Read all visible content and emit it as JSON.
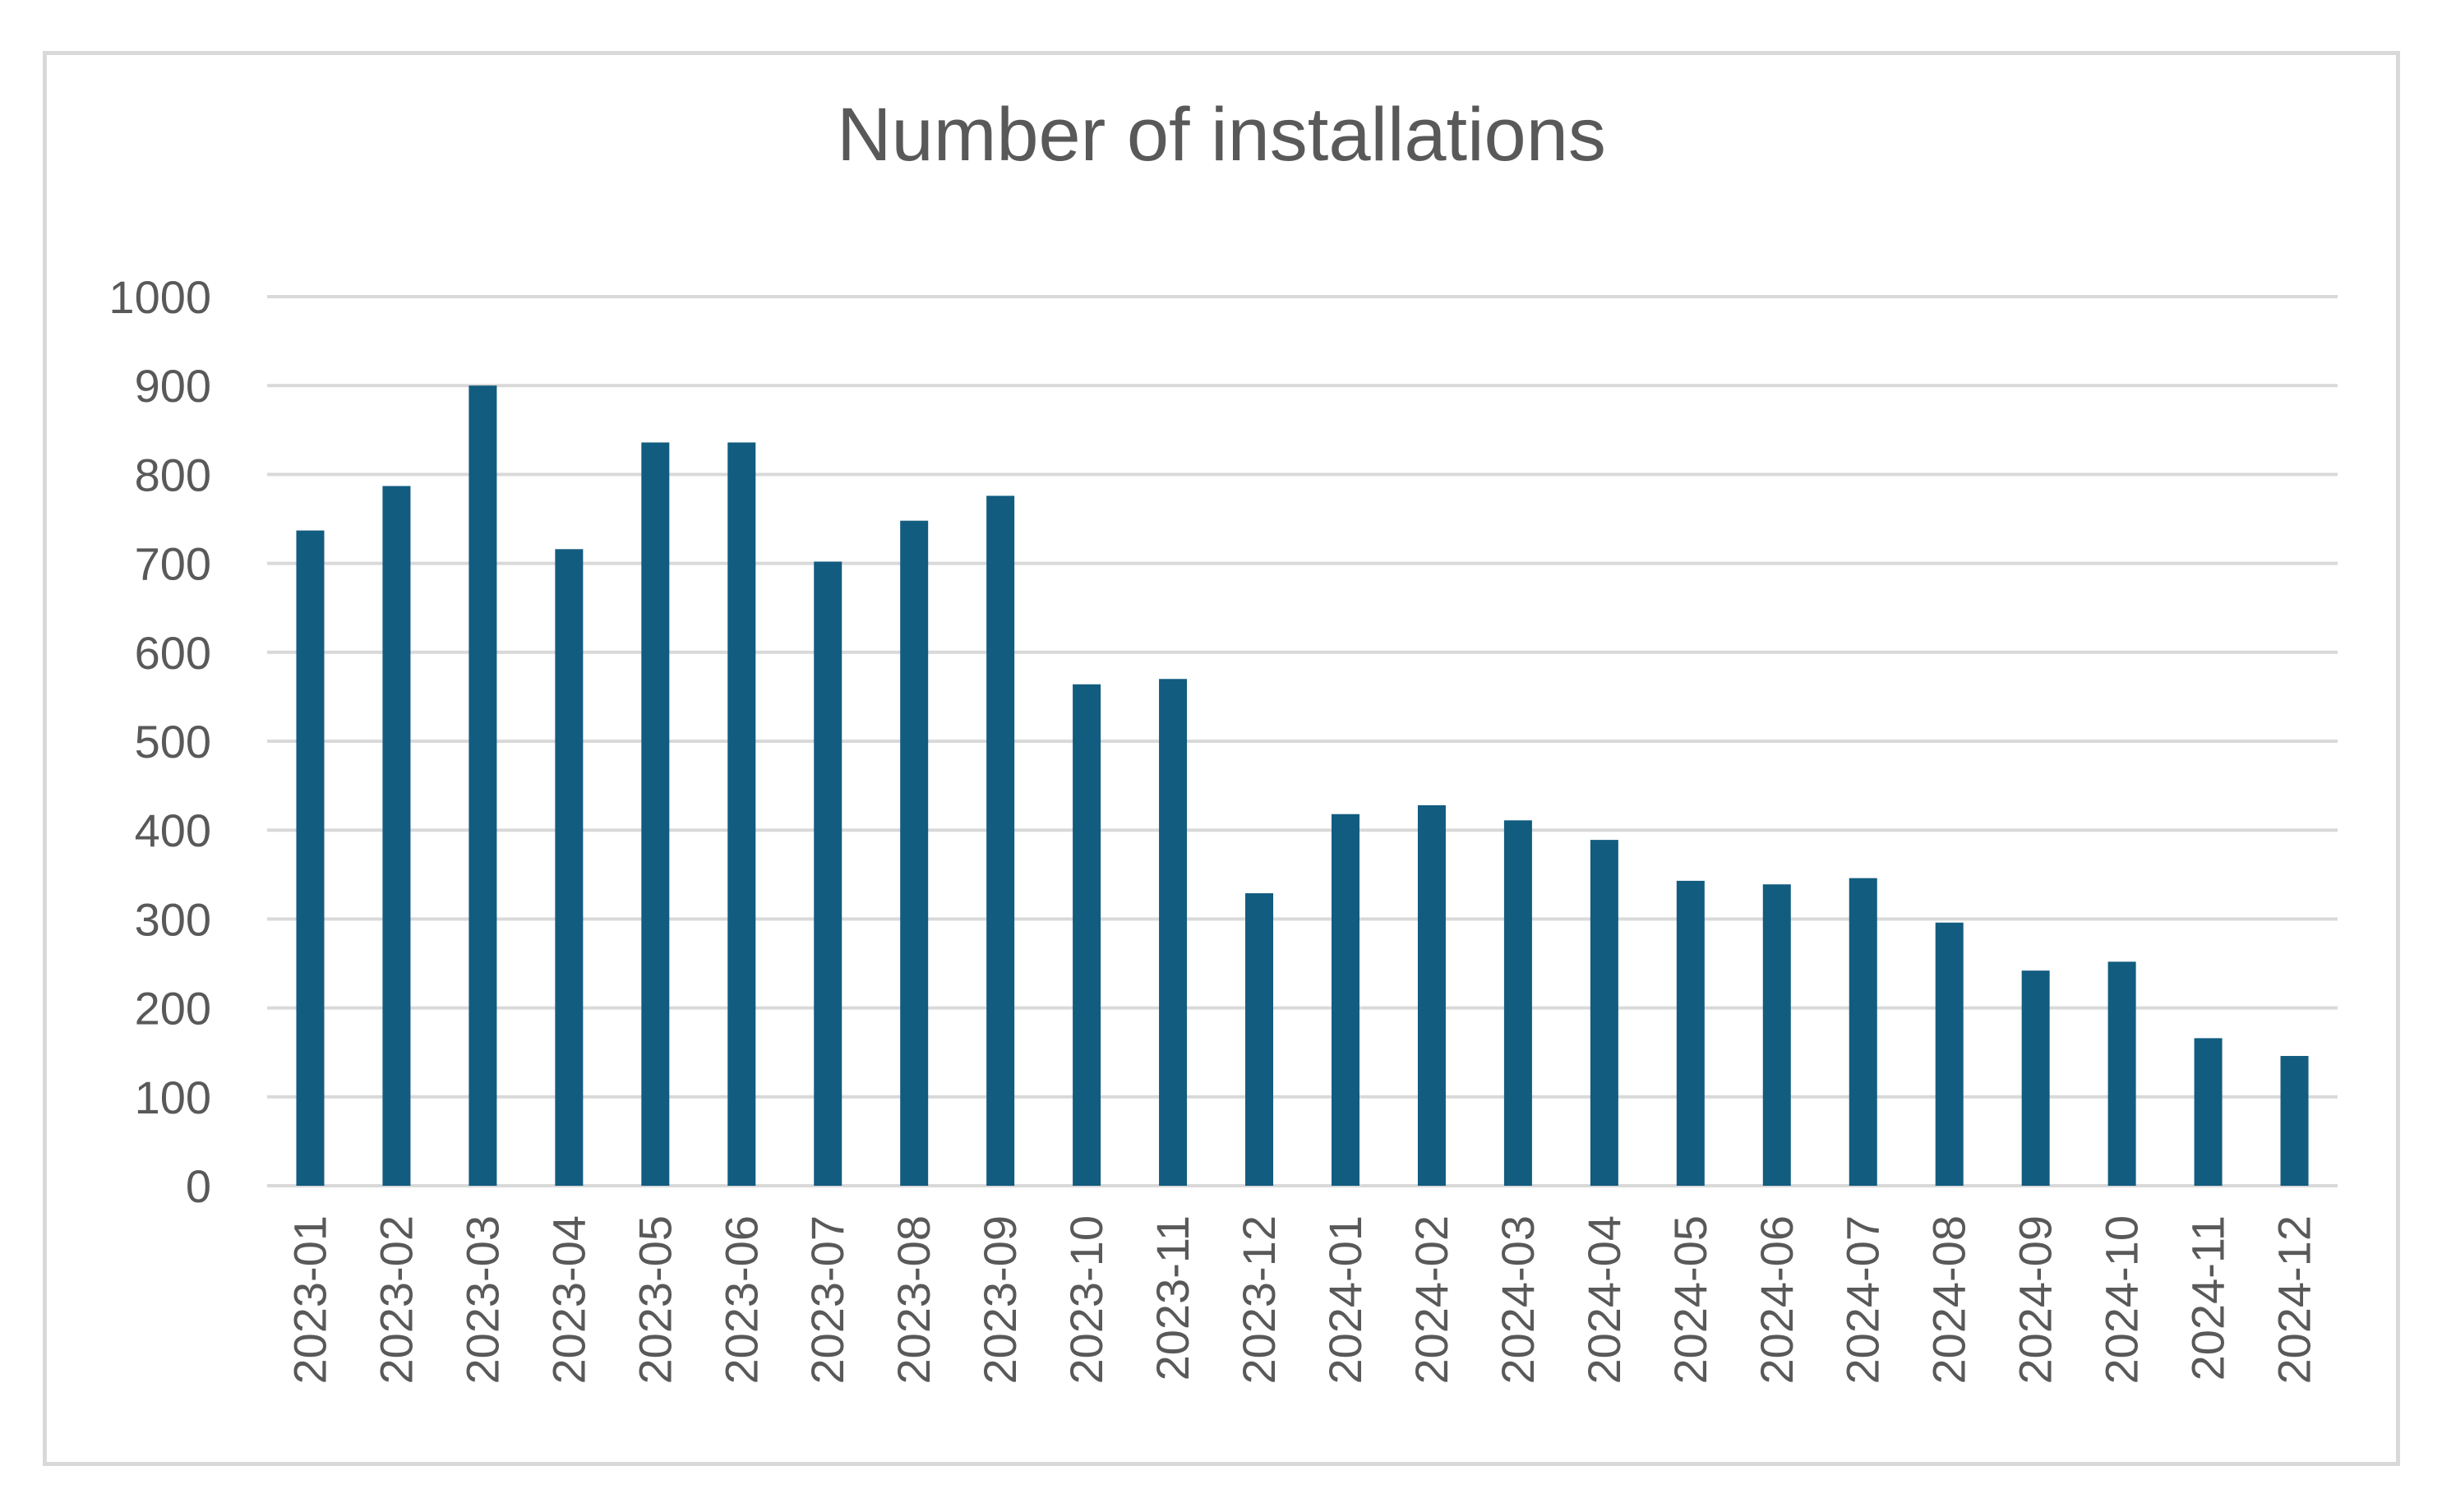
{
  "chart_data": {
    "type": "bar",
    "title": "Number of installations",
    "xlabel": "",
    "ylabel": "",
    "ylim": [
      0,
      1000
    ],
    "yticks": [
      0,
      100,
      200,
      300,
      400,
      500,
      600,
      700,
      800,
      900,
      1000
    ],
    "grid": true,
    "legend": "none",
    "bar_color": "#125C80",
    "categories": [
      "2023-01",
      "2023-02",
      "2023-03",
      "2023-04",
      "2023-05",
      "2023-06",
      "2023-07",
      "2023-08",
      "2023-09",
      "2023-10",
      "2023-11",
      "2023-12",
      "2024-01",
      "2024-02",
      "2024-03",
      "2024-04",
      "2024-05",
      "2024-06",
      "2024-07",
      "2024-08",
      "2024-09",
      "2024-10",
      "2024-11",
      "2024-12"
    ],
    "values": [
      737,
      787,
      900,
      716,
      836,
      836,
      702,
      748,
      776,
      564,
      570,
      329,
      418,
      428,
      411,
      389,
      343,
      339,
      346,
      296,
      242,
      252,
      166,
      146
    ]
  }
}
